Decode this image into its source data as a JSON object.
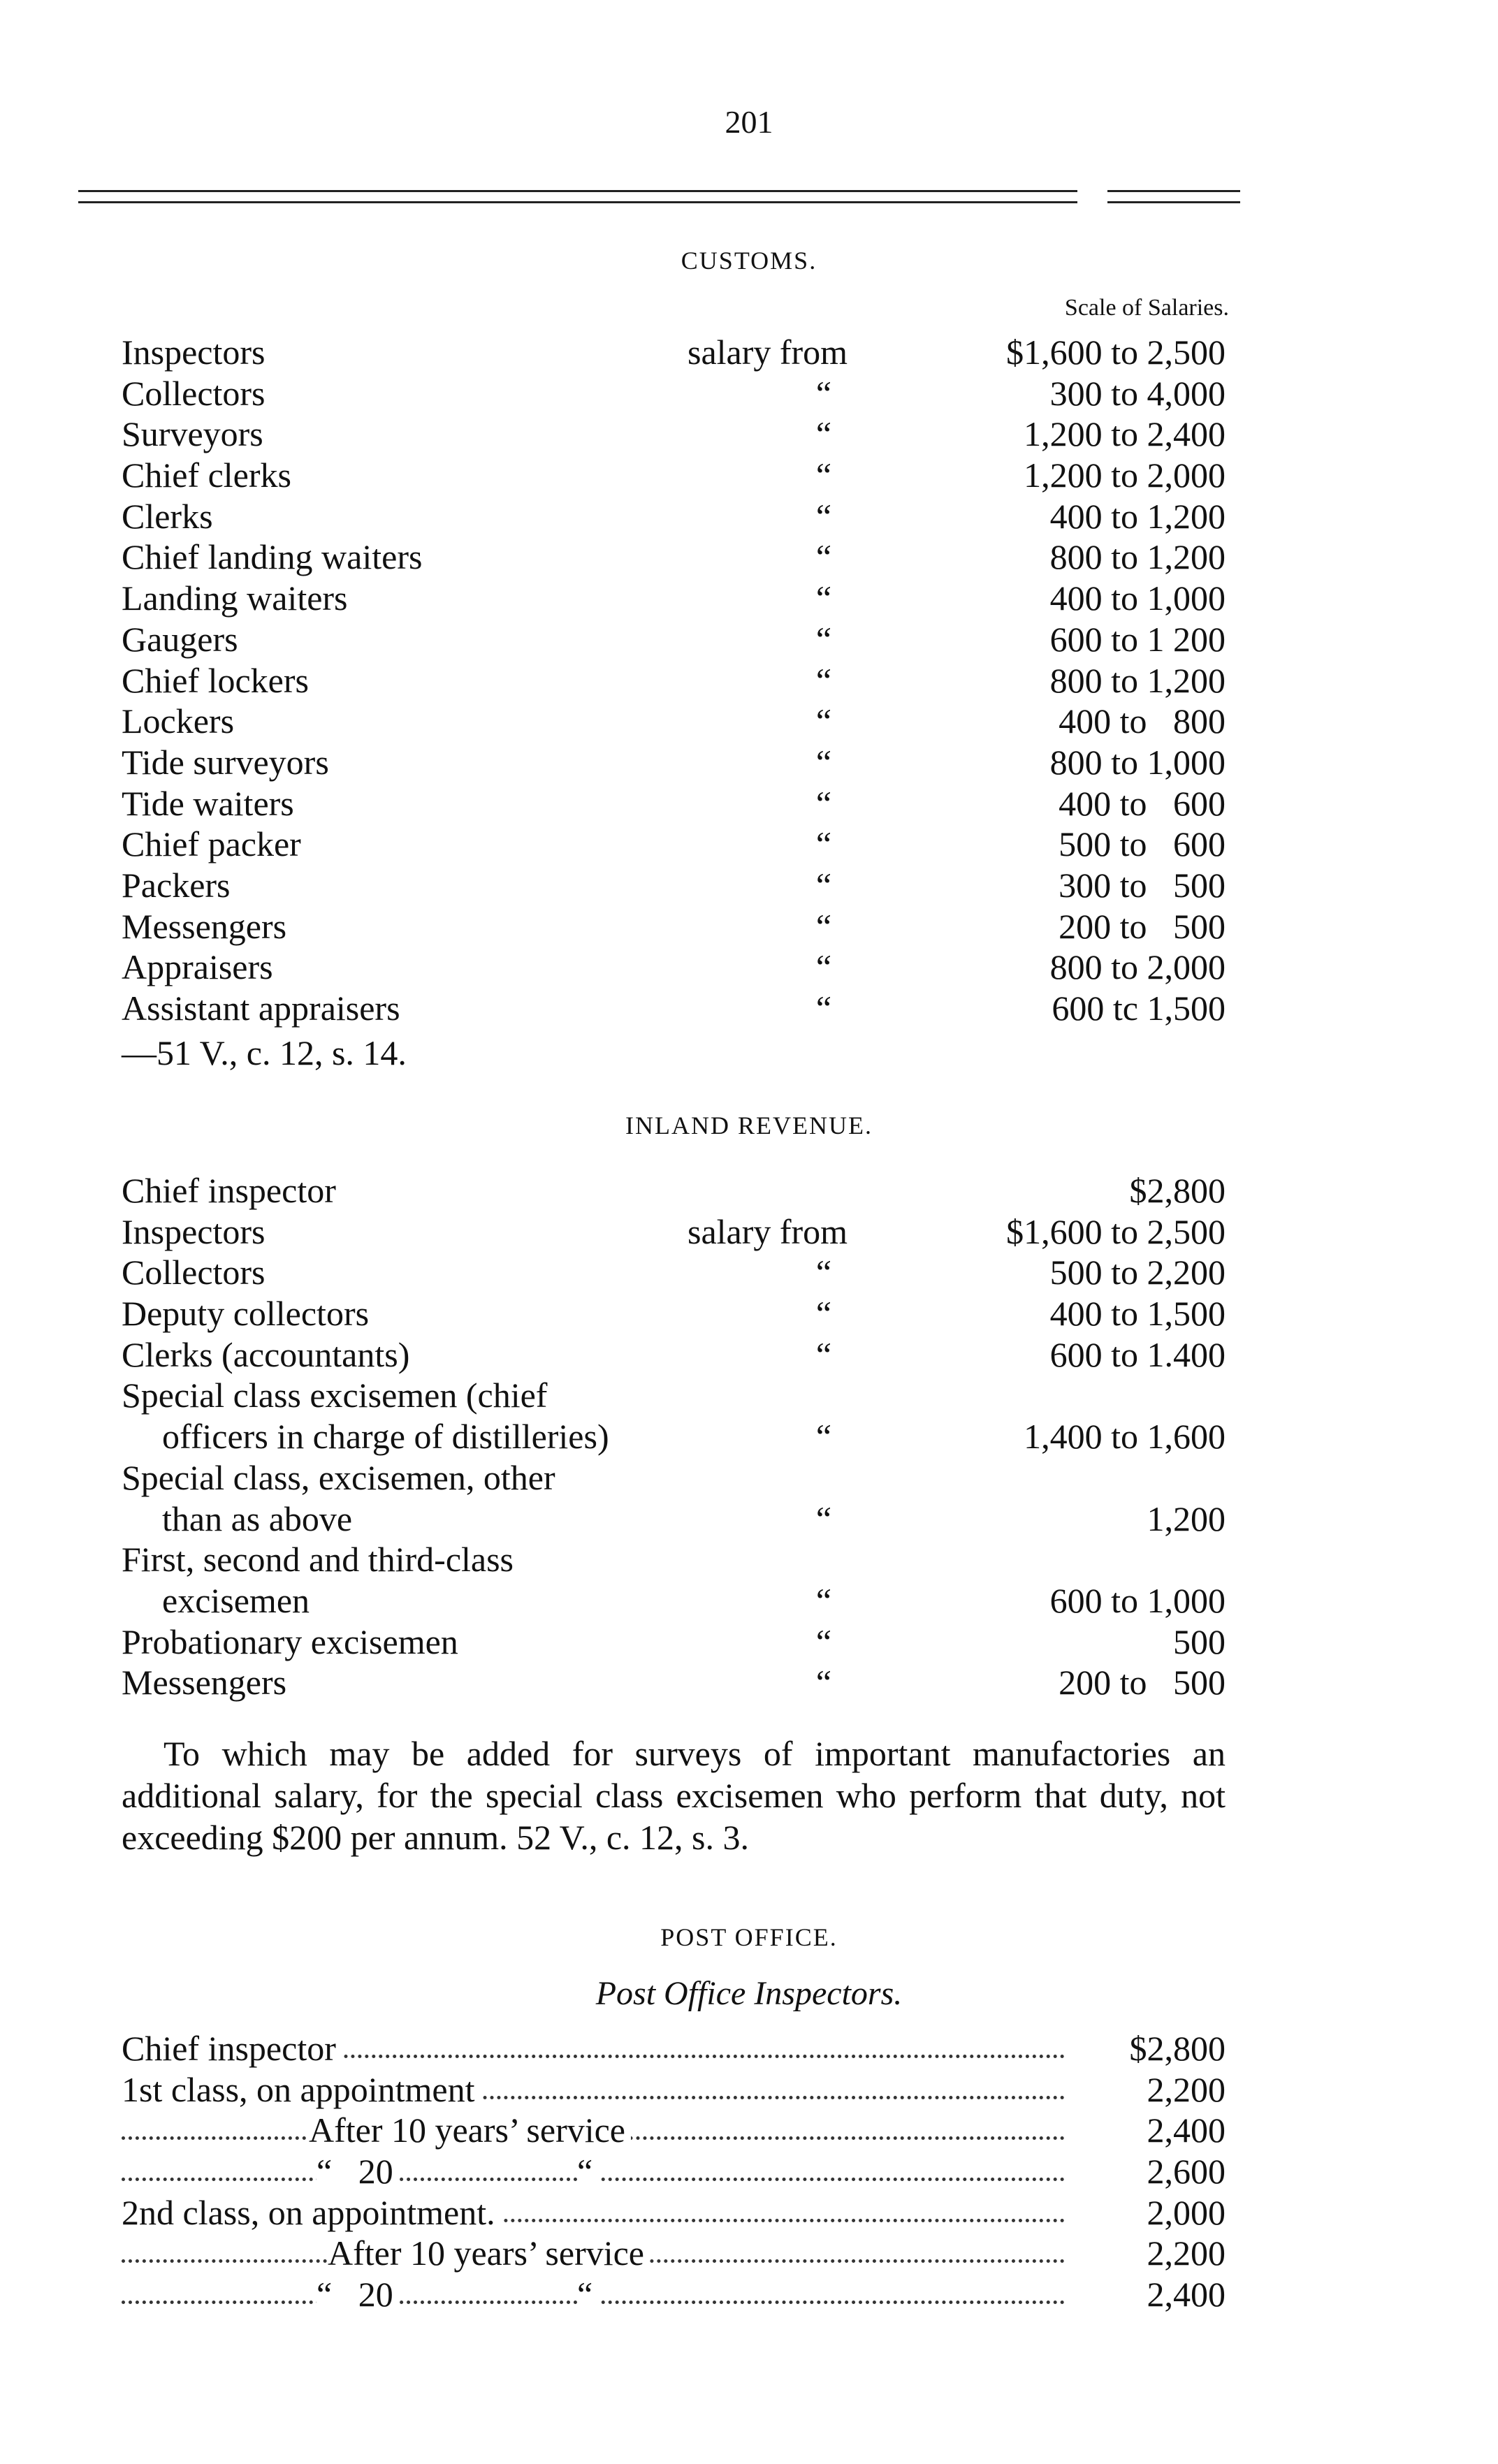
{
  "page_number": "201",
  "customs": {
    "heading": "CUSTOMS.",
    "scale_heading": "Scale of Salaries.",
    "rows": [
      {
        "label": "Inspectors",
        "ditto": "salary from",
        "value": "$1,600 to 2,500"
      },
      {
        "label": "Collectors",
        "ditto": "“",
        "value": "300 to 4,000"
      },
      {
        "label": "Surveyors",
        "ditto": "“",
        "value": "1,200 to 2,400"
      },
      {
        "label": "Chief clerks",
        "ditto": "“",
        "value": "1,200 to 2,000"
      },
      {
        "label": "Clerks",
        "ditto": "“",
        "value": "400 to 1,200"
      },
      {
        "label": "Chief landing waiters",
        "ditto": "“",
        "value": "800 to 1,200"
      },
      {
        "label": "Landing waiters",
        "ditto": "“",
        "value": "400 to 1,000"
      },
      {
        "label": "Gaugers",
        "ditto": "“",
        "value": "600 to 1 200"
      },
      {
        "label": "Chief lockers",
        "ditto": "“",
        "value": "800 to 1,200"
      },
      {
        "label": "Lockers",
        "ditto": "“",
        "value": "400 to   800"
      },
      {
        "label": "Tide surveyors",
        "ditto": "“",
        "value": "800 to 1,000"
      },
      {
        "label": "Tide waiters",
        "ditto": "“",
        "value": "400 to   600"
      },
      {
        "label": "Chief packer",
        "ditto": "“",
        "value": "500 to   600"
      },
      {
        "label": "Packers",
        "ditto": "“",
        "value": "300 to   500"
      },
      {
        "label": "Messengers",
        "ditto": "“",
        "value": "200 to   500"
      },
      {
        "label": "Appraisers",
        "ditto": "“",
        "value": "800 to 2,000"
      },
      {
        "label": "Assistant appraisers",
        "ditto": "“",
        "value": "600 tc 1,500"
      }
    ],
    "citation": "—51 V., c. 12, s. 14."
  },
  "inland_revenue": {
    "heading": "INLAND REVENUE.",
    "rows": [
      {
        "label": [
          "Chief inspector"
        ],
        "ditto": "",
        "value": "$2,800"
      },
      {
        "label": [
          "Inspectors"
        ],
        "ditto": "salary from",
        "value": "$1,600 to 2,500"
      },
      {
        "label": [
          "Collectors"
        ],
        "ditto": "“",
        "value": "500 to 2,200"
      },
      {
        "label": [
          "Deputy collectors"
        ],
        "ditto": "“",
        "value": "400 to 1,500"
      },
      {
        "label": [
          "Clerks  (accountants)"
        ],
        "ditto": "“",
        "value": "600 to 1.400"
      },
      {
        "label": [
          "Special class  excisemen  (chief",
          "officers in charge of distilleries)"
        ],
        "ditto": "“",
        "value": "1,400 to 1,600"
      },
      {
        "label": [
          "Special  class, excisemen,  other",
          "than as above"
        ],
        "ditto": "“",
        "value": "1,200"
      },
      {
        "label": [
          "First,   second   and   third-class",
          "excisemen"
        ],
        "ditto": "“",
        "value": "600 to 1,000"
      },
      {
        "label": [
          "Probationary excisemen"
        ],
        "ditto": "“",
        "value": "500"
      },
      {
        "label": [
          "Messengers"
        ],
        "ditto": "“",
        "value": "200 to   500"
      }
    ],
    "paragraph": "To which may be added for surveys of important manufactories an additional salary, for the special class excisemen who perform that duty, not exceeding $200 per annum.  52 V., c. 12, s. 3."
  },
  "post_office": {
    "heading": "POST OFFICE.",
    "subheading": "Post Office Inspectors.",
    "rows": [
      {
        "label": "Chief inspector",
        "ditto2": "",
        "value": "$2,800",
        "indent": 0
      },
      {
        "label": "1st class, on appointment",
        "ditto2": "",
        "value": "2,200",
        "indent": 0
      },
      {
        "label": "After 10 years’ service",
        "ditto2": "",
        "value": "2,400",
        "indent": 1
      },
      {
        "label": "“   20",
        "ditto2": "“",
        "value": "2,600",
        "indent": 2
      },
      {
        "label": "2nd class, on appointment.",
        "ditto2": "",
        "value": "2,000",
        "indent": 0
      },
      {
        "label": "After 10 years’ service",
        "ditto2": "",
        "value": "2,200",
        "indent": 3
      },
      {
        "label": "“   20",
        "ditto2": "“",
        "value": "2,400",
        "indent": 2
      }
    ]
  }
}
